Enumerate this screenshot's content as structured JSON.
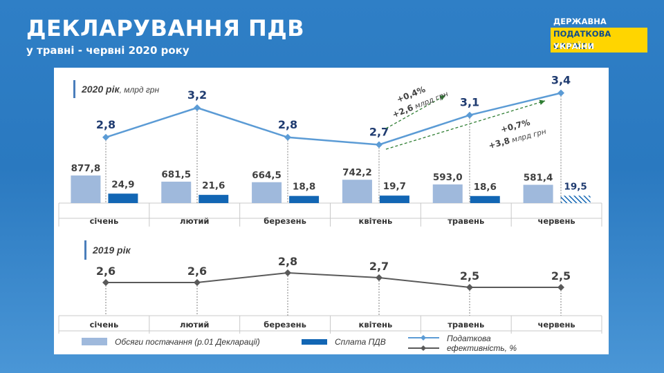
{
  "header": {
    "title": "ДЕКЛАРУВАННЯ ПДВ",
    "subtitle": "у травні - червні 2020 року"
  },
  "logo": {
    "line1": "ДЕРЖАВНА",
    "line2": "ПОДАТКОВА СЛУЖБА",
    "line3": "УКРАЇНИ"
  },
  "colors": {
    "volume_bar": "#9fb9dc",
    "payment_bar": "#1266b4",
    "line_2020": "#5b9bd5",
    "line_2019": "#595959",
    "label_blue": "#1f3b70",
    "forecast_green": "#2e7d32"
  },
  "chart_data": [
    {
      "type": "bar+line",
      "title": "2020 рік",
      "title_unit": ", млрд грн",
      "categories": [
        "січень",
        "лютий",
        "березень",
        "квітень",
        "травень",
        "червень"
      ],
      "series": [
        {
          "name": "Обсяги постачання (р.01 Декларації)",
          "kind": "bar",
          "values": [
            877.8,
            681.5,
            664.5,
            742.2,
            593.0,
            581.4
          ],
          "labels": [
            "877,8",
            "681,5",
            "664,5",
            "742,2",
            "593,0",
            "581,4"
          ]
        },
        {
          "name": "Сплата ПДВ",
          "kind": "bar",
          "values": [
            24.9,
            21.6,
            18.8,
            19.7,
            18.6,
            19.5
          ],
          "labels": [
            "24,9",
            "21,6",
            "18,8",
            "19,7",
            "18,6",
            "19,5"
          ],
          "last_hatched": true
        },
        {
          "name": "Податкова ефективність, %",
          "kind": "line",
          "values": [
            2.8,
            3.2,
            2.8,
            2.7,
            3.1,
            3.4
          ],
          "labels": [
            "2,8",
            "3,2",
            "2,8",
            "2,7",
            "3,1",
            "3,4"
          ]
        }
      ],
      "annotations": [
        {
          "line1": "+0,4%",
          "line2a": "+2,6",
          "line2b": " млрд грн"
        },
        {
          "line1": "+0,7%",
          "line2a": "+3,8",
          "line2b": " млрд грн"
        }
      ]
    },
    {
      "type": "line",
      "title": "2019 рік",
      "categories": [
        "січень",
        "лютий",
        "березень",
        "квітень",
        "травень",
        "червень"
      ],
      "series": [
        {
          "name": "Податкова ефективність, %",
          "values": [
            2.6,
            2.6,
            2.8,
            2.7,
            2.5,
            2.5
          ],
          "labels": [
            "2,6",
            "2,6",
            "2,8",
            "2,7",
            "2,5",
            "2,5"
          ]
        }
      ]
    }
  ],
  "legend": {
    "volume": "Обсяги постачання (р.01 Декларації)",
    "payment": "Сплата ПДВ",
    "efficiency_line1": "Податкова",
    "efficiency_line2": "ефективність, %"
  }
}
